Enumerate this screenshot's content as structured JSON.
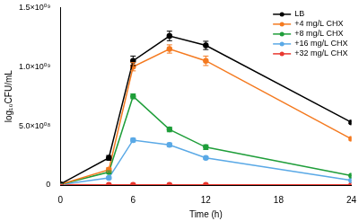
{
  "chart_data": {
    "type": "line",
    "x_label": "Time (h)",
    "y_label": "log₁₀CFU/mL",
    "x": [
      0,
      4,
      6,
      9,
      12,
      24
    ],
    "xlim": [
      0,
      24
    ],
    "xticks": [
      0,
      6,
      12,
      18,
      24
    ],
    "ylim": [
      0,
      1500000000
    ],
    "yticks": [
      0,
      {
        "value": 500000000,
        "label": "5.0×10⁰⁸"
      },
      {
        "value": 1000000000,
        "label": "1.0×10⁰⁹"
      },
      {
        "value": 1500000000,
        "label": "1.5×10⁰⁹"
      }
    ],
    "grid": false,
    "legend": "upper right",
    "marker": "circle",
    "series": [
      {
        "name": "LB",
        "color": "#000000",
        "values": [
          8000000,
          230000000,
          1050000000,
          1260000000,
          1180000000,
          530000000
        ],
        "errors": [
          2000000,
          20000000,
          40000000,
          40000000,
          35000000,
          10000000
        ]
      },
      {
        "name": "+4 mg/L CHX",
        "color": "#f47a20",
        "values": [
          6000000,
          130000000,
          1000000000,
          1150000000,
          1050000000,
          390000000
        ],
        "errors": [
          2000000,
          15000000,
          35000000,
          35000000,
          40000000,
          10000000
        ]
      },
      {
        "name": "+8 mg/L CHX",
        "color": "#1f9e3a",
        "values": [
          5000000,
          110000000,
          750000000,
          470000000,
          320000000,
          80000000
        ],
        "errors": [
          2000000,
          10000000,
          20000000,
          20000000,
          20000000,
          5000000
        ]
      },
      {
        "name": "+16 mg/L CHX",
        "color": "#5aa9e6",
        "values": [
          4000000,
          60000000,
          380000000,
          340000000,
          230000000,
          40000000
        ],
        "errors": [
          2000000,
          8000000,
          15000000,
          15000000,
          10000000,
          5000000
        ]
      },
      {
        "name": "+32 mg/L CHX",
        "color": "#e8382f",
        "values": [
          3000000,
          2000000,
          2000000,
          2000000,
          2000000,
          2000000
        ],
        "errors": [
          1000000,
          1000000,
          1000000,
          1000000,
          1000000,
          1000000
        ]
      }
    ]
  }
}
